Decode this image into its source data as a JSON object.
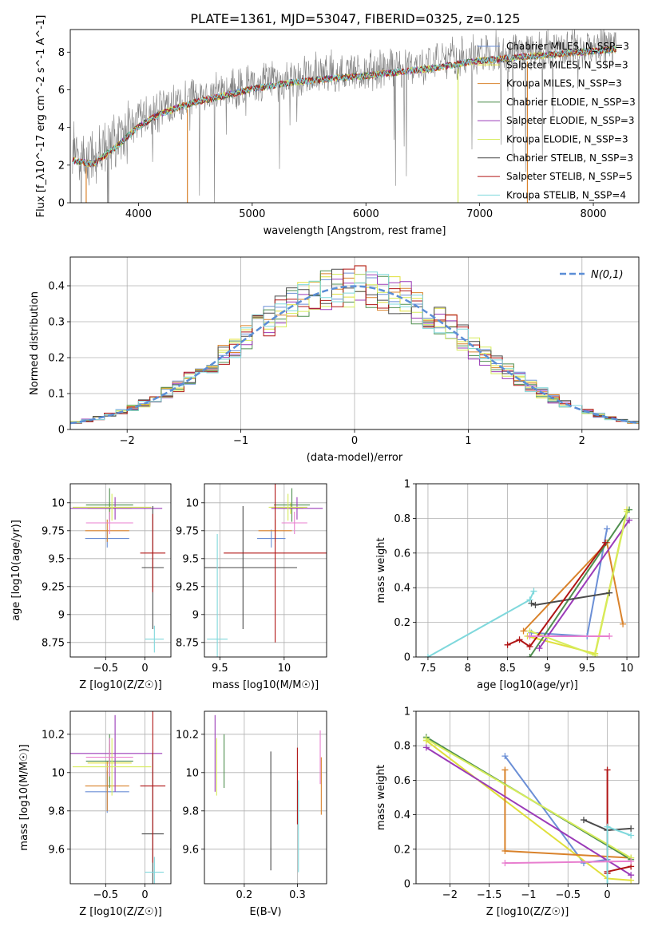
{
  "figure": {
    "title": "PLATE=1361, MJD=53047, FIBERID=0325, z=0.125",
    "colors": {
      "Chabrier MILES": "#6b8fd6",
      "Salpeter MILES": "#e0e03c",
      "Kroupa MILES": "#d9822b",
      "Chabrier ELODIE": "#4f8f4f",
      "Salpeter ELODIE": "#9b3bb8",
      "Kroupa ELODIE": "#d6ec5c",
      "Chabrier STELIB": "#4a4a4a",
      "Salpeter STELIB": "#b01515",
      "Kroupa STELIB": "#7fd8dc",
      "extra_pink": "#e87fcf",
      "spectrum": "#808080",
      "normal": "#5b8ed6"
    }
  },
  "chart_data": [
    {
      "id": "spectrum",
      "type": "line",
      "title": "PLATE=1361, MJD=53047, FIBERID=0325, z=0.125",
      "xlabel": "wavelength [Angstrom, rest frame]",
      "ylabel": "Flux [f_λ10^-17 erg cm^-2 s^-1 A^-1]",
      "xlim": [
        3400,
        8400
      ],
      "ylim": [
        0,
        9.2
      ],
      "xticks": [
        4000,
        5000,
        6000,
        7000,
        8000
      ],
      "yticks": [
        0,
        2,
        4,
        6,
        8
      ],
      "grid": false,
      "legend_position": "upper right",
      "model_envelope": {
        "x": [
          3420,
          3600,
          3800,
          4000,
          4200,
          4500,
          4800,
          5000,
          5300,
          5600,
          6000,
          6300,
          6600,
          7000,
          7400,
          7800,
          8200
        ],
        "y": [
          2.5,
          2.3,
          3.2,
          4.3,
          5.0,
          5.6,
          6.0,
          6.3,
          6.6,
          6.8,
          7.0,
          7.2,
          7.4,
          7.8,
          8.0,
          8.2,
          8.4
        ]
      },
      "series": [
        {
          "name": "Chabrier MILES, N_SSP=3"
        },
        {
          "name": "Salpeter MILES, N_SSP=3"
        },
        {
          "name": "Kroupa MILES, N_SSP=3"
        },
        {
          "name": "Chabrier ELODIE, N_SSP=3"
        },
        {
          "name": "Salpeter ELODIE, N_SSP=3"
        },
        {
          "name": "Kroupa ELODIE, N_SSP=3"
        },
        {
          "name": "Chabrier STELIB, N_SSP=3"
        },
        {
          "name": "Salpeter STELIB, N_SSP=5"
        },
        {
          "name": "Kroupa STELIB, N_SSP=4"
        }
      ]
    },
    {
      "id": "residuals",
      "type": "line",
      "xlabel": "(data-model)/error",
      "ylabel": "Normed distribution",
      "xlim": [
        -2.5,
        2.5
      ],
      "ylim": [
        0,
        0.48
      ],
      "xticks": [
        -2,
        -1,
        0,
        1,
        2
      ],
      "yticks": [
        0.0,
        0.1,
        0.2,
        0.3,
        0.4
      ],
      "grid": true,
      "legend": "N(0,1)",
      "legend_position": "upper right",
      "bin_width": 0.1
    },
    {
      "id": "age_vs_Z",
      "type": "scatter",
      "xlabel": "Z [log10(Z/Z☉)]",
      "ylabel": "age [log10(age/yr)]",
      "xlim": [
        -0.95,
        0.33
      ],
      "ylim": [
        8.62,
        10.17
      ],
      "xticks": [
        -0.5,
        0.0
      ],
      "yticks": [
        8.75,
        9.0,
        9.25,
        9.5,
        9.75,
        10.0
      ],
      "points": [
        {
          "c": "Chabrier MILES",
          "x": -0.48,
          "y": 9.68,
          "xe": 0.28,
          "ye": 0.08
        },
        {
          "c": "Salpeter MILES",
          "x": -0.45,
          "y": 9.95,
          "xe": 0.28,
          "ye": 0.05
        },
        {
          "c": "Kroupa MILES",
          "x": -0.48,
          "y": 9.75,
          "xe": 0.28,
          "ye": 0.1
        },
        {
          "c": "Chabrier ELODIE",
          "x": -0.45,
          "y": 9.98,
          "xe": 0.3,
          "ye": 0.15
        },
        {
          "c": "Salpeter ELODIE",
          "x": -0.38,
          "y": 9.95,
          "xe": 0.6,
          "ye": 0.1
        },
        {
          "c": "Kroupa ELODIE",
          "x": -0.42,
          "y": 9.96,
          "xe": 0.5,
          "ye": 0.12
        },
        {
          "c": "Chabrier STELIB",
          "x": 0.1,
          "y": 9.42,
          "xe": 0.14,
          "ye": 0.55
        },
        {
          "c": "Salpeter STELIB",
          "x": 0.1,
          "y": 9.55,
          "xe": 0.16,
          "ye": 0.35
        },
        {
          "c": "Kroupa STELIB",
          "x": 0.12,
          "y": 8.78,
          "xe": 0.12,
          "ye": 0.12
        },
        {
          "c": "extra_pink",
          "x": -0.45,
          "y": 9.82,
          "xe": 0.3,
          "ye": 0.1
        }
      ]
    },
    {
      "id": "age_vs_mass",
      "type": "scatter",
      "xlabel": "mass [log10(M/M☉)]",
      "ylabel": "",
      "xlim": [
        9.38,
        10.33
      ],
      "ylim": [
        8.62,
        10.17
      ],
      "xticks": [
        9.5,
        10.0
      ],
      "yticks": [
        8.75,
        9.0,
        9.25,
        9.5,
        9.75,
        10.0
      ],
      "points": [
        {
          "c": "Chabrier MILES",
          "x": 9.9,
          "y": 9.68,
          "xe": 0.11,
          "ye": 0.08
        },
        {
          "c": "Salpeter MILES",
          "x": 10.05,
          "y": 9.95,
          "xe": 0.1,
          "ye": 0.05
        },
        {
          "c": "Kroupa MILES",
          "x": 9.93,
          "y": 9.75,
          "xe": 0.13,
          "ye": 0.1
        },
        {
          "c": "Chabrier ELODIE",
          "x": 10.06,
          "y": 9.98,
          "xe": 0.14,
          "ye": 0.15
        },
        {
          "c": "Salpeter ELODIE",
          "x": 10.1,
          "y": 9.95,
          "xe": 0.2,
          "ye": 0.1
        },
        {
          "c": "Kroupa ELODIE",
          "x": 10.03,
          "y": 9.96,
          "xe": 0.15,
          "ye": 0.12
        },
        {
          "c": "Chabrier STELIB",
          "x": 9.68,
          "y": 9.42,
          "xe": 0.42,
          "ye": 0.55
        },
        {
          "c": "Salpeter STELIB",
          "x": 9.93,
          "y": 9.55,
          "xe": 0.4,
          "ye": 0.8
        },
        {
          "c": "Kroupa STELIB",
          "x": 9.48,
          "y": 8.78,
          "xe": 0.08,
          "ye": 0.94
        },
        {
          "c": "extra_pink",
          "x": 10.08,
          "y": 9.82,
          "xe": 0.1,
          "ye": 0.1
        }
      ]
    },
    {
      "id": "weight_vs_age",
      "type": "line",
      "xlabel": "age [log10(age/yr)]",
      "ylabel": "mass weight",
      "xlim": [
        7.35,
        10.15
      ],
      "ylim": [
        0.0,
        1.0
      ],
      "xticks": [
        7.5,
        8.0,
        8.5,
        9.0,
        9.5,
        10.0
      ],
      "yticks": [
        0.0,
        0.2,
        0.4,
        0.6,
        0.8,
        1.0
      ],
      "series": [
        {
          "c": "Chabrier MILES",
          "x": [
            8.8,
            9.5,
            9.75
          ],
          "y": [
            0.14,
            0.12,
            0.74
          ]
        },
        {
          "c": "Salpeter MILES",
          "x": [
            8.75,
            9.6,
            10.0
          ],
          "y": [
            0.12,
            0.02,
            0.85
          ]
        },
        {
          "c": "Kroupa MILES",
          "x": [
            8.7,
            9.75,
            9.95
          ],
          "y": [
            0.15,
            0.66,
            0.19
          ]
        },
        {
          "c": "Chabrier ELODIE",
          "x": [
            8.78,
            10.03
          ],
          "y": [
            0.0,
            0.85
          ]
        },
        {
          "c": "Salpeter ELODIE",
          "x": [
            8.9,
            10.03
          ],
          "y": [
            0.05,
            0.79
          ]
        },
        {
          "c": "Kroupa ELODIE",
          "x": [
            8.78,
            9.6,
            10.0
          ],
          "y": [
            0.15,
            0.01,
            0.84
          ]
        },
        {
          "c": "Chabrier STELIB",
          "x": [
            8.8,
            8.85,
            9.78
          ],
          "y": [
            0.31,
            0.3,
            0.37
          ]
        },
        {
          "c": "Salpeter STELIB",
          "x": [
            8.5,
            8.65,
            8.78,
            9.73
          ],
          "y": [
            0.07,
            0.1,
            0.06,
            0.66
          ]
        },
        {
          "c": "Kroupa STELIB",
          "x": [
            7.5,
            8.78,
            8.83
          ],
          "y": [
            0.0,
            0.33,
            0.38
          ]
        },
        {
          "c": "extra_pink",
          "x": [
            8.78,
            9.78
          ],
          "y": [
            0.12,
            0.12
          ]
        }
      ]
    },
    {
      "id": "mass_vs_Z",
      "type": "scatter",
      "xlabel": "Z [log10(Z/Z☉)]",
      "ylabel": "mass [log10(M/M☉)]",
      "xlim": [
        -0.95,
        0.33
      ],
      "ylim": [
        9.42,
        10.32
      ],
      "xticks": [
        -0.5,
        0.0
      ],
      "yticks": [
        9.6,
        9.8,
        10.0,
        10.2
      ],
      "points": [
        {
          "c": "Chabrier MILES",
          "x": -0.48,
          "y": 9.9,
          "xe": 0.28,
          "ye": 0.11
        },
        {
          "c": "Salpeter MILES",
          "x": -0.45,
          "y": 10.05,
          "xe": 0.28,
          "ye": 0.1
        },
        {
          "c": "Kroupa MILES",
          "x": -0.48,
          "y": 9.93,
          "xe": 0.28,
          "ye": 0.13
        },
        {
          "c": "Chabrier ELODIE",
          "x": -0.45,
          "y": 10.06,
          "xe": 0.3,
          "ye": 0.14
        },
        {
          "c": "Salpeter ELODIE",
          "x": -0.38,
          "y": 10.1,
          "xe": 0.6,
          "ye": 0.2
        },
        {
          "c": "Kroupa ELODIE",
          "x": -0.42,
          "y": 10.03,
          "xe": 0.5,
          "ye": 0.15
        },
        {
          "c": "Chabrier STELIB",
          "x": 0.1,
          "y": 9.68,
          "xe": 0.14,
          "ye": 0.42
        },
        {
          "c": "Salpeter STELIB",
          "x": 0.1,
          "y": 9.93,
          "xe": 0.16,
          "ye": 0.4
        },
        {
          "c": "Kroupa STELIB",
          "x": 0.12,
          "y": 9.48,
          "xe": 0.12,
          "ye": 0.08
        },
        {
          "c": "extra_pink",
          "x": -0.45,
          "y": 10.08,
          "xe": 0.3,
          "ye": 0.1
        }
      ]
    },
    {
      "id": "mass_vs_ebv",
      "type": "scatter",
      "xlabel": "E(B-V)",
      "ylabel": "",
      "xlim": [
        0.125,
        0.355
      ],
      "ylim": [
        9.42,
        10.32
      ],
      "xticks": [
        0.2,
        0.3
      ],
      "yticks": [
        9.6,
        9.8,
        10.0,
        10.2
      ],
      "points": [
        {
          "c": "Salpeter ELODIE",
          "x": 0.145,
          "y": 10.1,
          "ye": 0.2
        },
        {
          "c": "Kroupa ELODIE",
          "x": 0.148,
          "y": 10.03,
          "ye": 0.15
        },
        {
          "c": "Chabrier ELODIE",
          "x": 0.162,
          "y": 10.06,
          "ye": 0.14
        },
        {
          "c": "Chabrier STELIB",
          "x": 0.25,
          "y": 9.8,
          "ye": 0.31
        },
        {
          "c": "Salpeter STELIB",
          "x": 0.3,
          "y": 9.93,
          "ye": 0.2
        },
        {
          "c": "Kroupa STELIB",
          "x": 0.302,
          "y": 9.72,
          "ye": 0.24
        },
        {
          "c": "Kroupa MILES",
          "x": 0.345,
          "y": 9.93,
          "ye": 0.15
        },
        {
          "c": "extra_pink",
          "x": 0.343,
          "y": 10.08,
          "ye": 0.14
        }
      ]
    },
    {
      "id": "weight_vs_Z",
      "type": "line",
      "xlabel": "Z [log10(Z/Z☉)]",
      "ylabel": "mass weight",
      "xlim": [
        -2.43,
        0.4
      ],
      "ylim": [
        0.0,
        1.0
      ],
      "xticks": [
        -2.0,
        -1.5,
        -1.0,
        -0.5,
        0.0
      ],
      "yticks": [
        0.0,
        0.2,
        0.4,
        0.6,
        0.8,
        1.0
      ],
      "series": [
        {
          "c": "Chabrier MILES",
          "x": [
            -1.3,
            -0.3,
            0.0
          ],
          "y": [
            0.74,
            0.12,
            0.14
          ]
        },
        {
          "c": "Salpeter MILES",
          "x": [
            -2.3,
            0.0,
            0.3
          ],
          "y": [
            0.83,
            0.03,
            0.02
          ]
        },
        {
          "c": "Kroupa MILES",
          "x": [
            -1.3,
            -1.3,
            0.3
          ],
          "y": [
            0.66,
            0.19,
            0.15
          ]
        },
        {
          "c": "Chabrier ELODIE",
          "x": [
            -2.3,
            0.3
          ],
          "y": [
            0.85,
            0.14
          ]
        },
        {
          "c": "Salpeter ELODIE",
          "x": [
            -2.3,
            0.3
          ],
          "y": [
            0.79,
            0.05
          ]
        },
        {
          "c": "Kroupa ELODIE",
          "x": [
            -2.3,
            0.3
          ],
          "y": [
            0.84,
            0.15
          ]
        },
        {
          "c": "Chabrier STELIB",
          "x": [
            -0.3,
            0.0,
            0.3
          ],
          "y": [
            0.37,
            0.31,
            0.32
          ]
        },
        {
          "c": "Salpeter STELIB",
          "x": [
            0.0,
            0.0,
            0.0,
            0.3
          ],
          "y": [
            0.66,
            0.06,
            0.07,
            0.1
          ]
        },
        {
          "c": "Kroupa STELIB",
          "x": [
            0.0,
            0.0,
            0.3
          ],
          "y": [
            0.0,
            0.33,
            0.28
          ]
        },
        {
          "c": "extra_pink",
          "x": [
            -1.3,
            0.3
          ],
          "y": [
            0.12,
            0.13
          ]
        }
      ]
    }
  ]
}
